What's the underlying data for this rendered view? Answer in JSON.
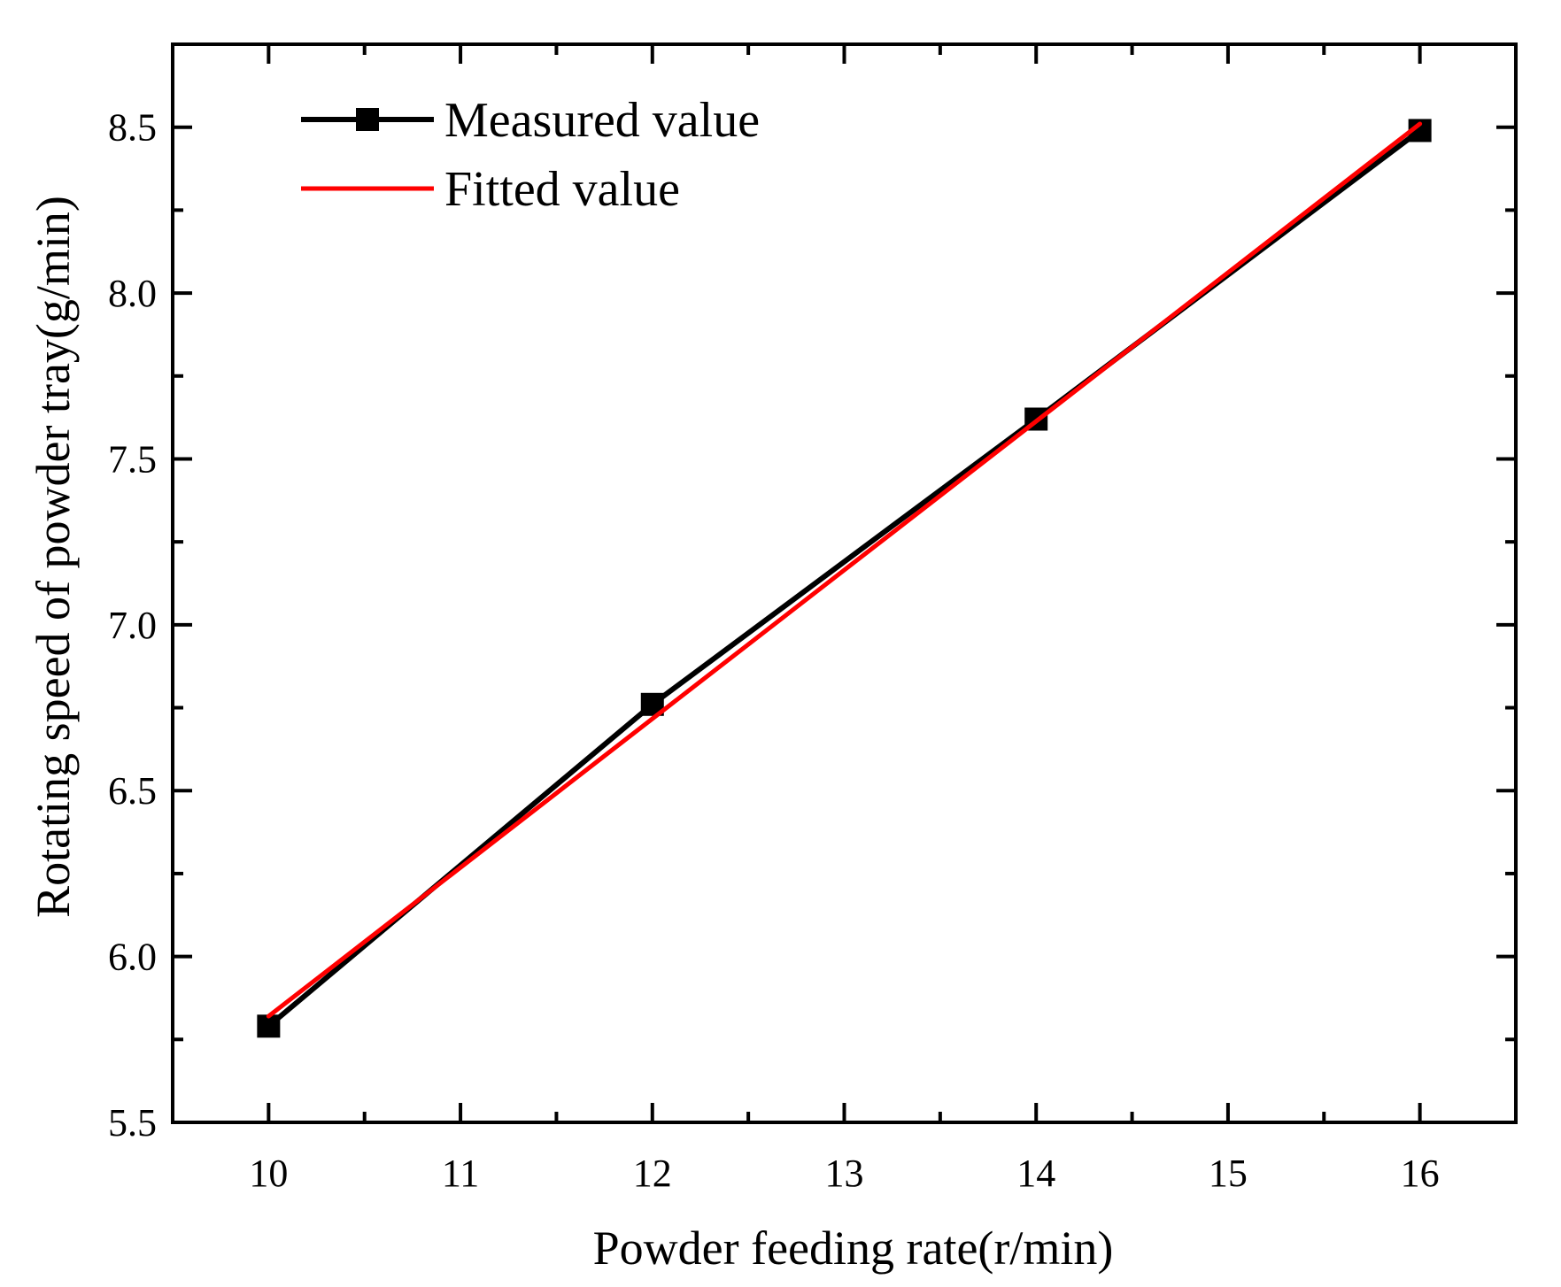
{
  "chart_data": {
    "type": "line",
    "title": "",
    "xlabel": "Powder feeding rate(r/min)",
    "ylabel": "Rotating speed of powder tray(g/min)",
    "xlim": [
      9.5,
      16.5
    ],
    "ylim": [
      5.5,
      8.75
    ],
    "x_ticks": [
      10,
      11,
      12,
      13,
      14,
      15,
      16
    ],
    "x_tick_labels": [
      "10",
      "11",
      "12",
      "13",
      "14",
      "15",
      "16"
    ],
    "y_ticks": [
      5.5,
      6.0,
      6.5,
      7.0,
      7.5,
      8.0,
      8.5
    ],
    "y_tick_labels": [
      "5.5",
      "6.0",
      "6.5",
      "7.0",
      "7.5",
      "8.0",
      "8.5"
    ],
    "grid": false,
    "legend_position": "top-left",
    "series": [
      {
        "name": "Measured value",
        "color": "#000000",
        "marker": "square",
        "x": [
          10,
          12,
          14,
          16
        ],
        "y": [
          5.79,
          6.76,
          7.62,
          8.49
        ]
      },
      {
        "name": "Fitted value",
        "color": "#ff0000",
        "marker": "none",
        "x": [
          10,
          16
        ],
        "y": [
          5.82,
          8.51
        ]
      }
    ]
  }
}
